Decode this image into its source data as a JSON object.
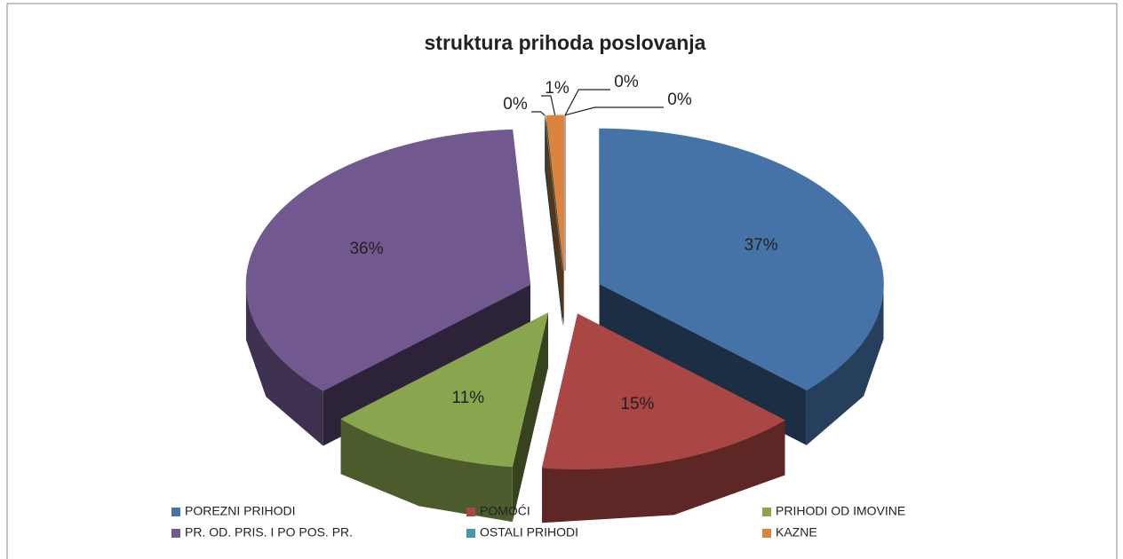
{
  "chart_data": {
    "type": "pie3d",
    "title": "struktura  prihoda poslovanja",
    "categories": [
      "POREZNI PRIHODI",
      "POMOĆI",
      "PRIHODI OD IMOVINE",
      "PR. OD. PRIS. I PO POS. PR.",
      "OSTALI PRIHODI",
      "KAZNE",
      null,
      null
    ],
    "values": [
      37,
      15,
      11,
      36,
      0,
      1,
      0,
      0
    ],
    "value_labels": [
      "37%",
      "15%",
      "11%",
      "36%",
      "0%",
      "1%",
      "0%",
      "0%"
    ],
    "colors": [
      "#4572a7",
      "#aa4643",
      "#89a54e",
      "#71588f",
      "#4198af",
      "#db843d",
      "#2c4d75",
      "#772c2a"
    ],
    "legend": "bottom"
  }
}
